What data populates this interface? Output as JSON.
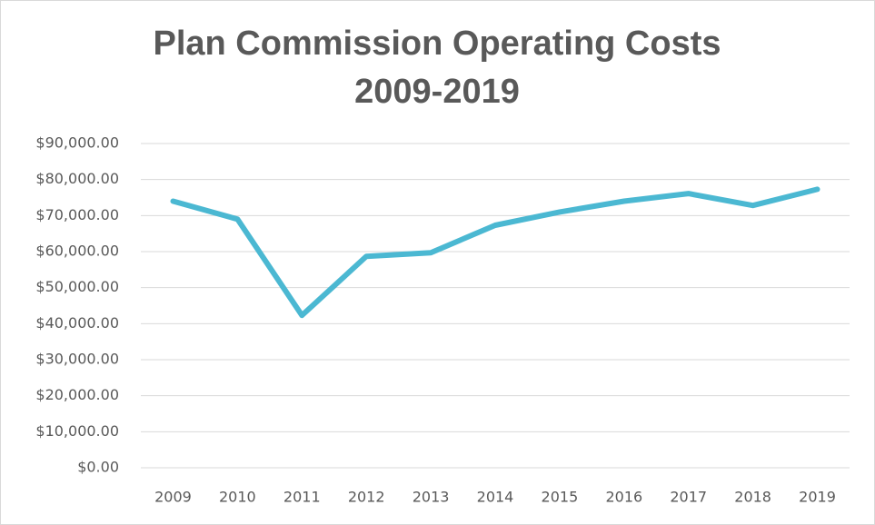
{
  "chart_data": {
    "type": "line",
    "title": "Plan Commission Operating Costs 2009-2019",
    "categories": [
      "2009",
      "2010",
      "2011",
      "2012",
      "2013",
      "2014",
      "2015",
      "2016",
      "2017",
      "2018",
      "2019"
    ],
    "series": [
      {
        "name": "Operating Costs",
        "color": "#4bb8d2",
        "values": [
          74000,
          69000,
          42300,
          58700,
          59700,
          67300,
          71000,
          74000,
          76100,
          72800,
          77300
        ]
      }
    ],
    "ylim": [
      0,
      90000
    ],
    "yticks": [
      {
        "value": 0,
        "label": "$0.00"
      },
      {
        "value": 10000,
        "label": "$10,000.00"
      },
      {
        "value": 20000,
        "label": "$20,000.00"
      },
      {
        "value": 30000,
        "label": "$30,000.00"
      },
      {
        "value": 40000,
        "label": "$40,000.00"
      },
      {
        "value": 50000,
        "label": "$50,000.00"
      },
      {
        "value": 60000,
        "label": "$60,000.00"
      },
      {
        "value": 70000,
        "label": "$70,000.00"
      },
      {
        "value": 80000,
        "label": "$80,000.00"
      },
      {
        "value": 90000,
        "label": "$90,000.00"
      }
    ],
    "grid": true
  }
}
